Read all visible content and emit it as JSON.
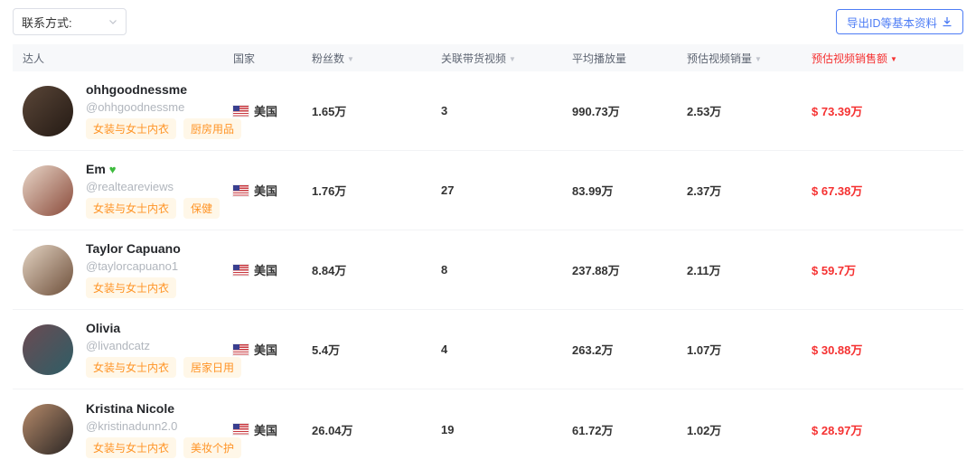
{
  "filters": {
    "contact_label": "联系方式:"
  },
  "export_button": {
    "label": "导出ID等基本资料"
  },
  "colors": {
    "accent_blue": "#4e7df5",
    "sort_active_red": "#f53131",
    "tag_orange": "#ff9426",
    "tag_bg": "#fff7e8"
  },
  "table": {
    "columns": [
      {
        "label": "达人",
        "sortable": false,
        "active": false
      },
      {
        "label": "国家",
        "sortable": false,
        "active": false
      },
      {
        "label": "粉丝数",
        "sortable": true,
        "active": false
      },
      {
        "label": "关联带货视频",
        "sortable": true,
        "active": false
      },
      {
        "label": "平均播放量",
        "sortable": false,
        "active": false
      },
      {
        "label": "预估视频销量",
        "sortable": true,
        "active": false
      },
      {
        "label": "预估视频销售额",
        "sortable": true,
        "active": true
      }
    ],
    "rows": [
      {
        "name": "ohhgoodnessme",
        "name_icon": null,
        "handle": "@ohhgoodnessme",
        "tags": [
          "女装与女士内衣",
          "厨房用品"
        ],
        "country": "美国",
        "followers": "1.65万",
        "videos": "3",
        "avg_views": "990.73万",
        "est_sales": "2.53万",
        "est_amount": "$ 73.39万",
        "avatar_colors": [
          "#5a4638",
          "#241a14"
        ]
      },
      {
        "name": "Em",
        "name_icon": "green-heart",
        "handle": "@realteareviews",
        "tags": [
          "女装与女士内衣",
          "保健"
        ],
        "country": "美国",
        "followers": "1.76万",
        "videos": "27",
        "avg_views": "83.99万",
        "est_sales": "2.37万",
        "est_amount": "$ 67.38万",
        "avatar_colors": [
          "#e8d6c8",
          "#8a4a3a"
        ]
      },
      {
        "name": "Taylor Capuano",
        "name_icon": null,
        "handle": "@taylorcapuano1",
        "tags": [
          "女装与女士内衣"
        ],
        "country": "美国",
        "followers": "8.84万",
        "videos": "8",
        "avg_views": "237.88万",
        "est_sales": "2.11万",
        "est_amount": "$ 59.7万",
        "avatar_colors": [
          "#e3d3c2",
          "#6e4f3a"
        ]
      },
      {
        "name": "Olivia",
        "name_icon": null,
        "handle": "@livandcatz",
        "tags": [
          "女装与女士内衣",
          "居家日用"
        ],
        "country": "美国",
        "followers": "5.4万",
        "videos": "4",
        "avg_views": "263.2万",
        "est_sales": "1.07万",
        "est_amount": "$ 30.88万",
        "avatar_colors": [
          "#6b4a52",
          "#2e5e66"
        ]
      },
      {
        "name": "Kristina Nicole",
        "name_icon": null,
        "handle": "@kristinadunn2.0",
        "tags": [
          "女装与女士内衣",
          "美妆个护"
        ],
        "country": "美国",
        "followers": "26.04万",
        "videos": "19",
        "avg_views": "61.72万",
        "est_sales": "1.02万",
        "est_amount": "$ 28.97万",
        "avatar_colors": [
          "#b58a6a",
          "#2b2624"
        ]
      }
    ]
  }
}
